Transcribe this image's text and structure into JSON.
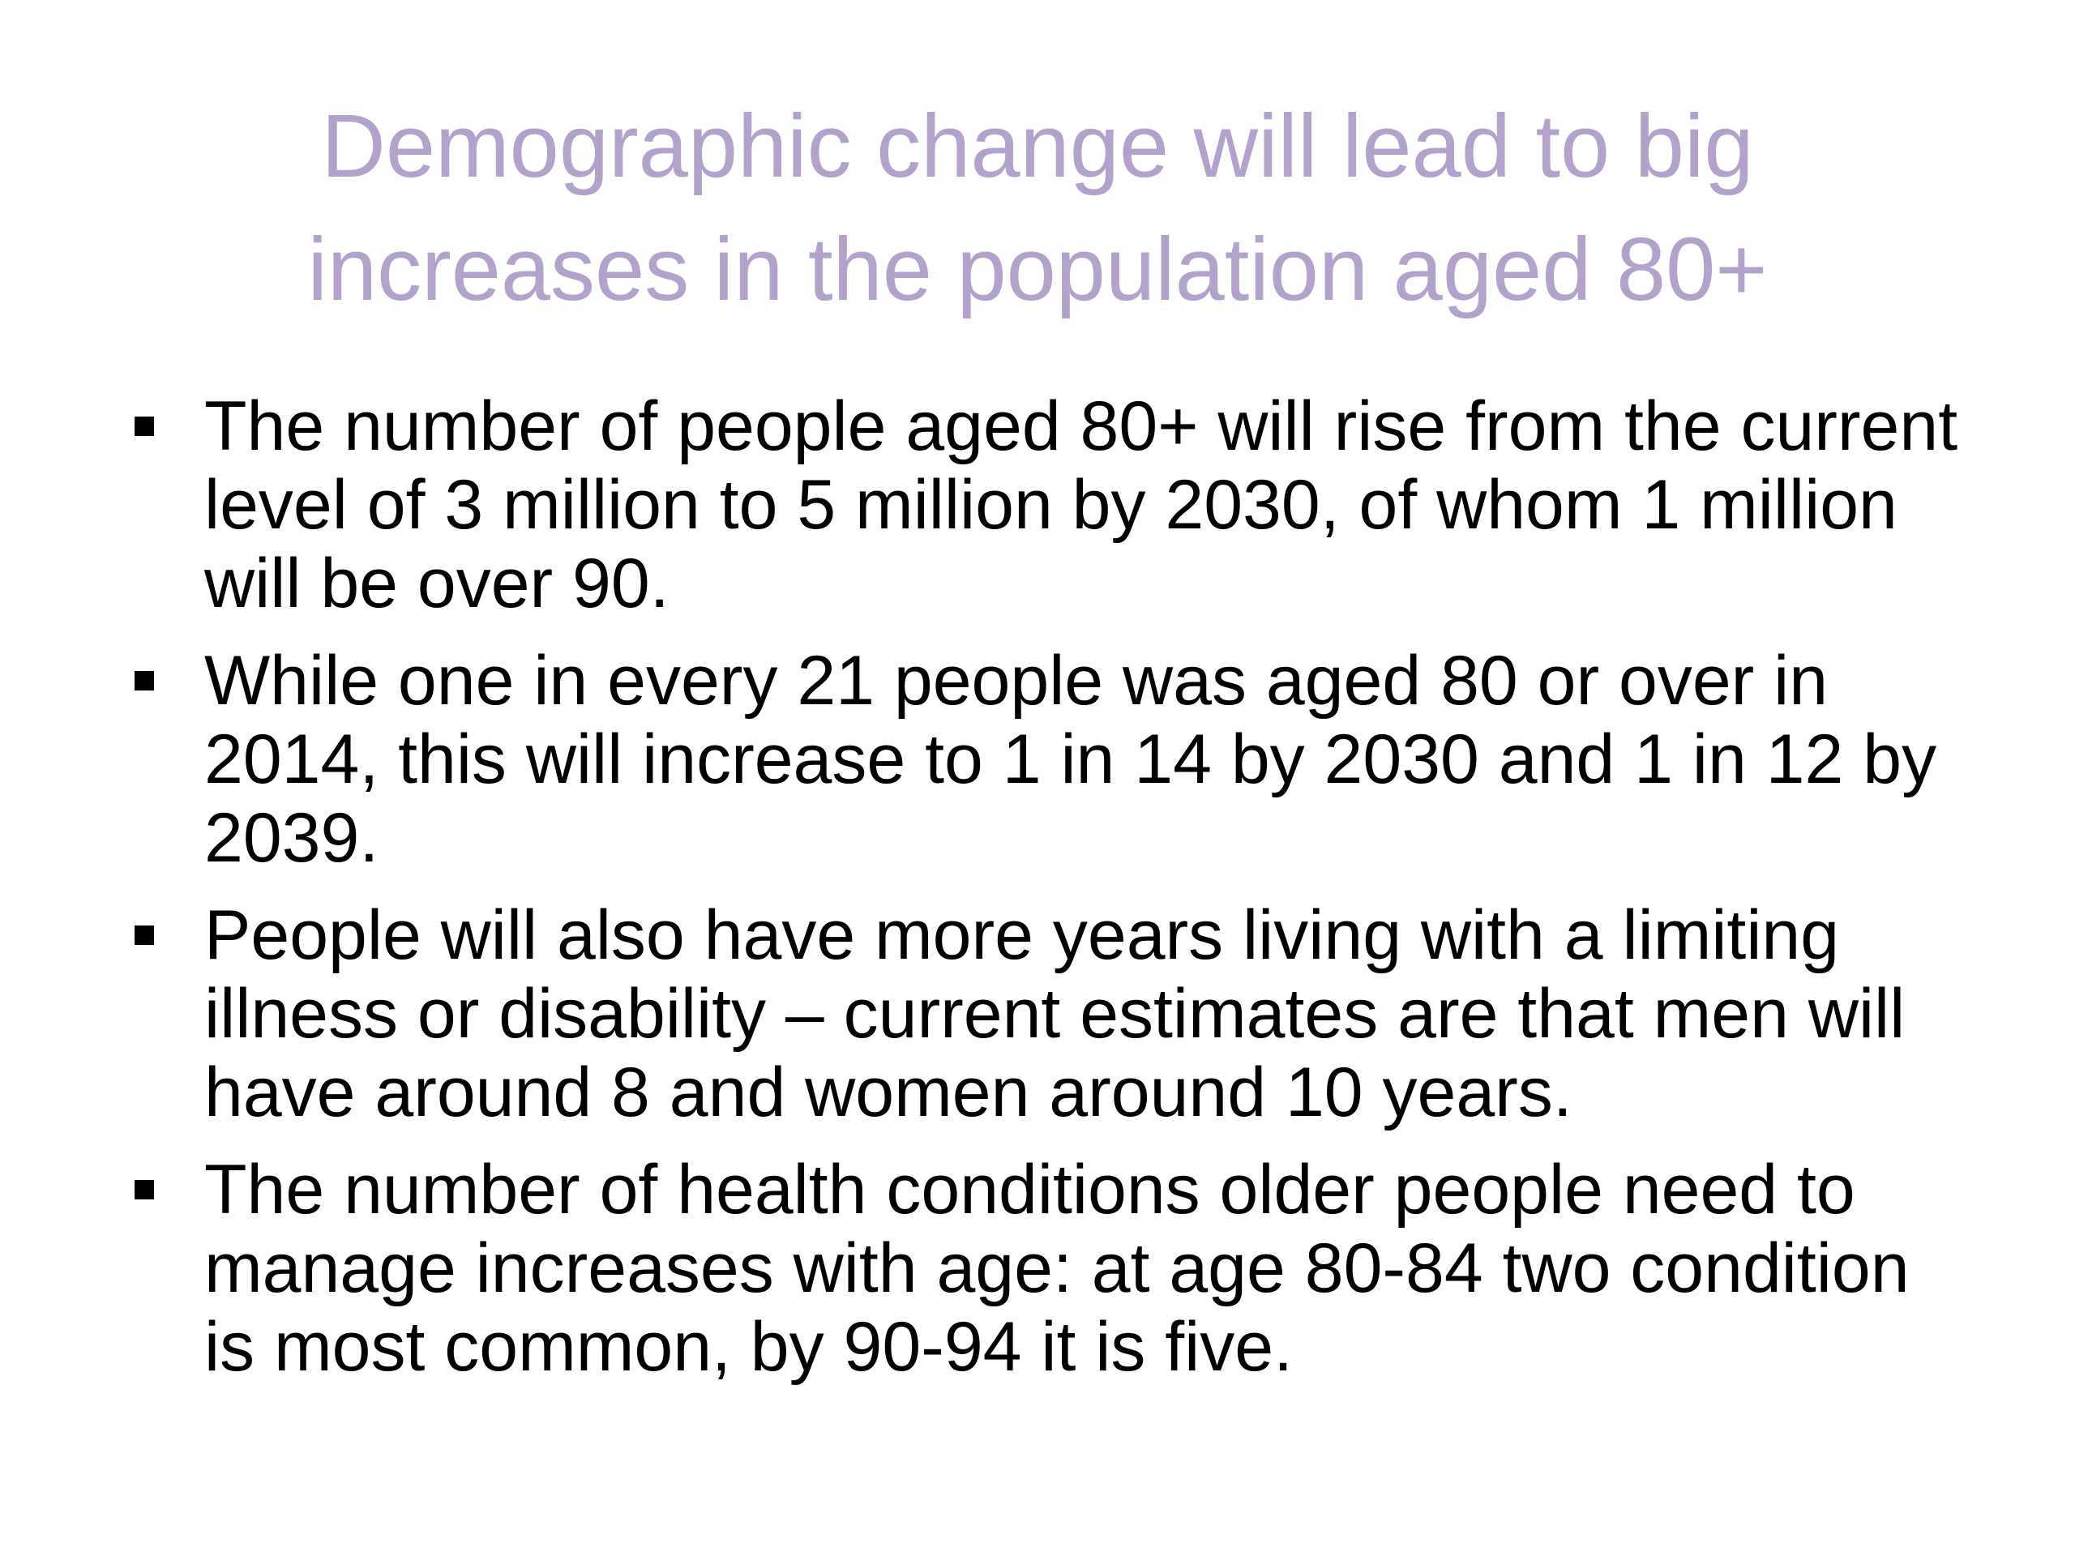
{
  "slide": {
    "title_lines": [
      "Demographic change will lead to big",
      "increases in the population aged 80+"
    ],
    "bullets": [
      {
        "text": "The number of people aged 80+ will rise from the current level of 3 million to 5 million by 2030, of whom 1 million will be over 90."
      },
      {
        "text": "While one in every 21 people was aged 80 or over in 2014, this will increase to 1 in 14 by 2030 and 1 in 12 by 2039."
      },
      {
        "text": "People will also have more years living with a limiting illness or disability – current estimates are that men will have around 8 and women around 10 years."
      },
      {
        "text": "The number of health conditions older people need to manage increases with age: at age 80-84 two condition is most common, by 90-94 it is five."
      }
    ],
    "colors": {
      "title": "#b3a2cc",
      "body": "#000000",
      "background": "#ffffff"
    }
  }
}
